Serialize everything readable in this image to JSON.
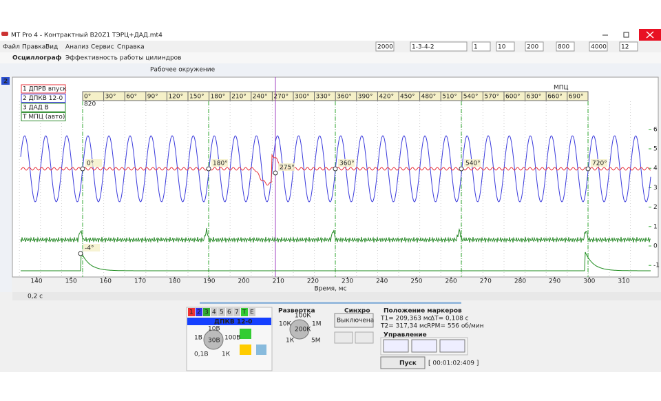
{
  "window": {
    "title": "MT Pro 4 - Контрактный B20Z1 ТЭРЦ+ДАД.mt4"
  },
  "menu": [
    "Файл",
    "Правка",
    "Вид",
    "Анализ",
    "Сервис",
    "Справка"
  ],
  "tabs": [
    "Осциллограф",
    "Эффективность работы цилиндров"
  ],
  "toolbar": {
    "environment": "Рабочее окружение",
    "fields": [
      "2000",
      "1-3-4-2",
      "1",
      "10",
      "200",
      "800",
      "4000",
      "12"
    ]
  },
  "side_channel": "2",
  "channels": [
    "1 ДПРВ впуск",
    "2 ДПКВ 12-0",
    "3 ДАД   В",
    "Т МПЦ (авто)"
  ],
  "angle_scale": {
    "label": "МПЦ",
    "start": "820",
    "ticks": [
      "0°",
      "30°",
      "60°",
      "90°",
      "120°",
      "150°",
      "180°",
      "210°",
      "240°",
      "270°",
      "300°",
      "330°",
      "360°",
      "390°",
      "420°",
      "450°",
      "480°",
      "510°",
      "540°",
      "570°",
      "600°",
      "630°",
      "660°",
      "690°"
    ]
  },
  "markers": [
    "0°",
    "180°",
    "275°",
    "360°",
    "540°",
    "720°",
    "-4°"
  ],
  "x_axis": {
    "ticks": [
      140,
      150,
      160,
      170,
      180,
      190,
      200,
      210,
      220,
      230,
      240,
      250,
      260,
      270,
      280,
      290,
      300,
      310
    ],
    "label": "Время, мс"
  },
  "y_axis": {
    "ticks": [
      6,
      5,
      4,
      3,
      2,
      1,
      0,
      -1
    ]
  },
  "zoom": "0,2 с",
  "panel": {
    "channel_buttons": [
      "1",
      "2",
      "3",
      "4",
      "5",
      "6",
      "7",
      "Т",
      "Е"
    ],
    "channel_name": "ДПКВ 12-0",
    "volt_knob": [
      "10В",
      "1В",
      "100В",
      "0,1В",
      "1К",
      "30В"
    ],
    "sweep": {
      "title": "Развертка",
      "labels": [
        "100К",
        "10К",
        "1М",
        "1К",
        "5М",
        "200К"
      ]
    },
    "sync": {
      "title": "Синхро",
      "state": "Выключена"
    },
    "markers": {
      "title": "Положение маркеров",
      "t1": "T1= 209,363 мс",
      "dt": "ΔT= 0,108 с",
      "t2": "T2= 317,34 мс",
      "rpm": "RPM= 556 об/мин"
    },
    "control": {
      "title": "Управление",
      "start": "Пуск",
      "time": "[ 00:01:02:409 ]"
    }
  }
}
